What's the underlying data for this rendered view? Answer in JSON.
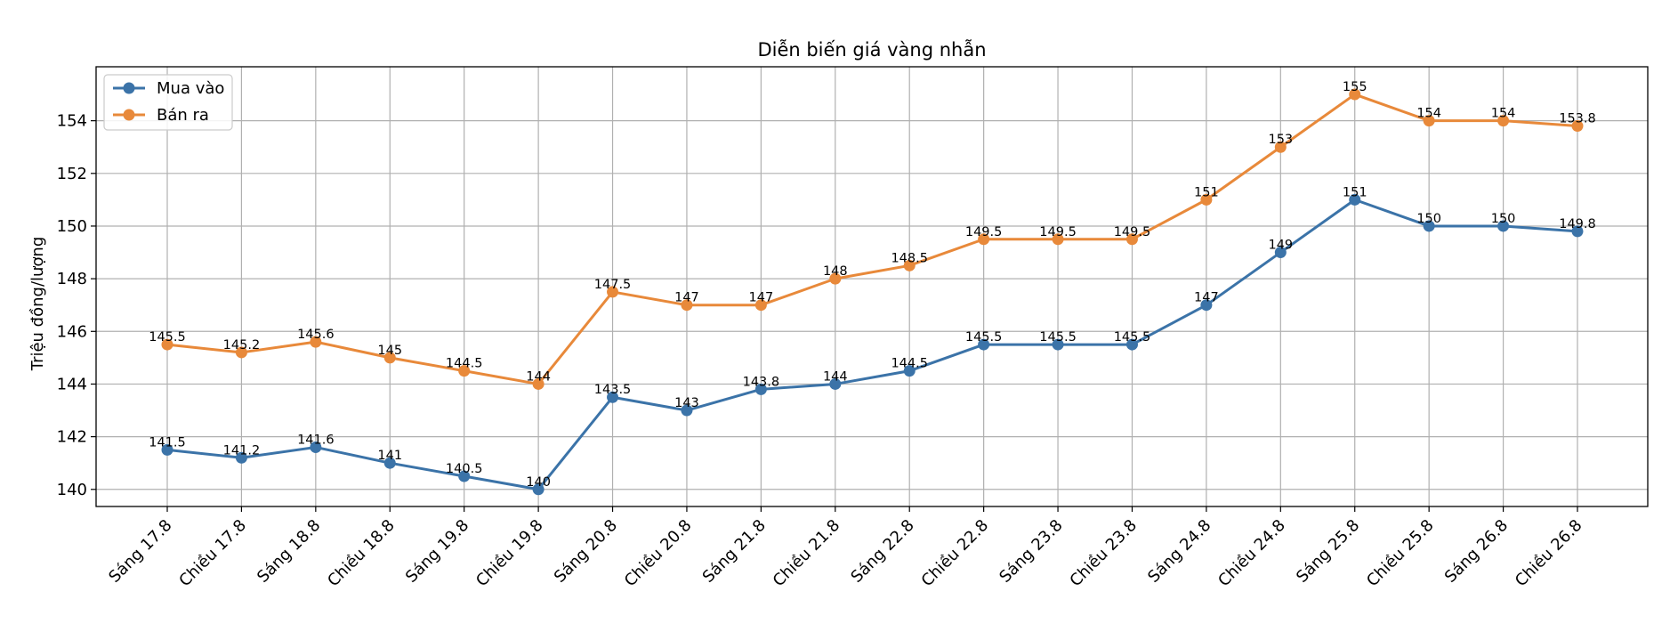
{
  "chart_data": {
    "type": "line",
    "title": "Diễn biến giá vàng nhẫn",
    "xlabel": "",
    "ylabel": "Triệu đồng/lượng",
    "categories": [
      "Sáng 17.8",
      "Chiều 17.8",
      "Sáng 18.8",
      "Chiều 18.8",
      "Sáng 19.8",
      "Chiều 19.8",
      "Sáng 20.8",
      "Chiều 20.8",
      "Sáng 21.8",
      "Chiều 21.8",
      "Sáng 22.8",
      "Chiều 22.8",
      "Sáng 23.8",
      "Chiều 23.8",
      "Sáng 24.8",
      "Chiều 24.8",
      "Sáng 25.8",
      "Chiều 25.8",
      "Sáng 26.8",
      "Chiều 26.8"
    ],
    "yticks": [
      "140",
      "142",
      "144",
      "146",
      "148",
      "150",
      "152",
      "154"
    ],
    "ylim": [
      139.35,
      156.05
    ],
    "grid": true,
    "legend_position": "top-left",
    "series": [
      {
        "name": "Mua vào",
        "color": "#3b73a8",
        "values": [
          141.5,
          141.2,
          141.6,
          141,
          140.5,
          140,
          143.5,
          143,
          143.8,
          144,
          144.5,
          145.5,
          145.5,
          145.5,
          147,
          149,
          151,
          150,
          150,
          149.8
        ],
        "labels": [
          "141.5",
          "141.2",
          "141.6",
          "141",
          "140.5",
          "140",
          "143.5",
          "143",
          "143.8",
          "144",
          "144.5",
          "145.5",
          "145.5",
          "145.5",
          "147",
          "149",
          "151",
          "150",
          "150",
          "149.8"
        ]
      },
      {
        "name": "Bán ra",
        "color": "#e8893a",
        "values": [
          145.5,
          145.2,
          145.6,
          145,
          144.5,
          144,
          147.5,
          147,
          147,
          148,
          148.5,
          149.5,
          149.5,
          149.5,
          151,
          153,
          155,
          154,
          154,
          153.8
        ],
        "labels": [
          "145.5",
          "145.2",
          "145.6",
          "145",
          "144.5",
          "144",
          "147.5",
          "147",
          "147",
          "148",
          "148.5",
          "149.5",
          "149.5",
          "149.5",
          "151",
          "153",
          "155",
          "154",
          "154",
          "153.8"
        ]
      }
    ]
  }
}
